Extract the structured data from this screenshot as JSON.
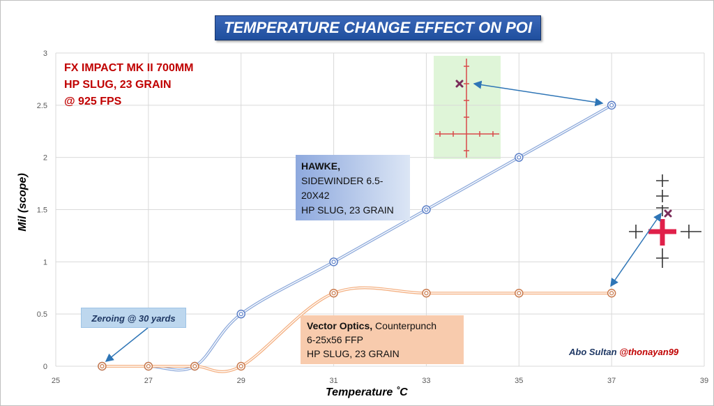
{
  "chart_data": {
    "type": "line",
    "title": "TEMPERATURE CHANGE EFFECT ON POI",
    "xlabel": "Temperature ˚C",
    "ylabel": "Mil (scope)",
    "xlim": [
      25,
      39
    ],
    "ylim": [
      0,
      3
    ],
    "x_ticks": [
      "25",
      "27",
      "29",
      "31",
      "33",
      "35",
      "37",
      "39"
    ],
    "y_ticks": [
      "0",
      "0.5",
      "1",
      "1.5",
      "2",
      "2.5",
      "3"
    ],
    "grid": true,
    "smooth": true,
    "series": [
      {
        "name": "HAWKE",
        "color": "#8eaadb",
        "points": [
          [
            26,
            0
          ],
          [
            27,
            0
          ],
          [
            28,
            0
          ],
          [
            29,
            0.5
          ],
          [
            31,
            1
          ],
          [
            33,
            1.5
          ],
          [
            35,
            2
          ],
          [
            37,
            2.5
          ]
        ]
      },
      {
        "name": "Vector Optics",
        "color": "#f4b183",
        "points": [
          [
            26,
            0
          ],
          [
            27,
            0
          ],
          [
            28,
            0
          ],
          [
            29,
            0
          ],
          [
            31,
            0.7
          ],
          [
            33,
            0.7
          ],
          [
            35,
            0.7
          ],
          [
            37,
            0.7
          ]
        ]
      }
    ]
  },
  "rifle_lines": [
    "FX IMPACT MK II 700MM",
    "HP SLUG, 23 GRAIN",
    "@ 925 FPS"
  ],
  "hawke_label": {
    "name": "HAWKE,",
    "lines": [
      "SIDEWINDER 6.5-",
      "20X42",
      "HP SLUG, 23 GRAIN"
    ]
  },
  "vector_label": {
    "name": "Vector Optics,",
    "model": " Counterpunch",
    "lines": [
      "6-25x56 FFP",
      "HP SLUG, 23 GRAIN"
    ]
  },
  "zero_label": "Zeroing @ 30 yards",
  "credit": {
    "name": "Abo Sultan",
    "handle": "@thonayan99"
  },
  "colors": {
    "hawke_line": "#8eaadb",
    "vector_line": "#f4b183",
    "arrow": "#2e75b6",
    "rifle_text": "#c00000",
    "title_bg": "#2f5fb3"
  },
  "icons": [
    "reticle-green-icon",
    "reticle-dot-icon",
    "poi-cross-icon"
  ]
}
